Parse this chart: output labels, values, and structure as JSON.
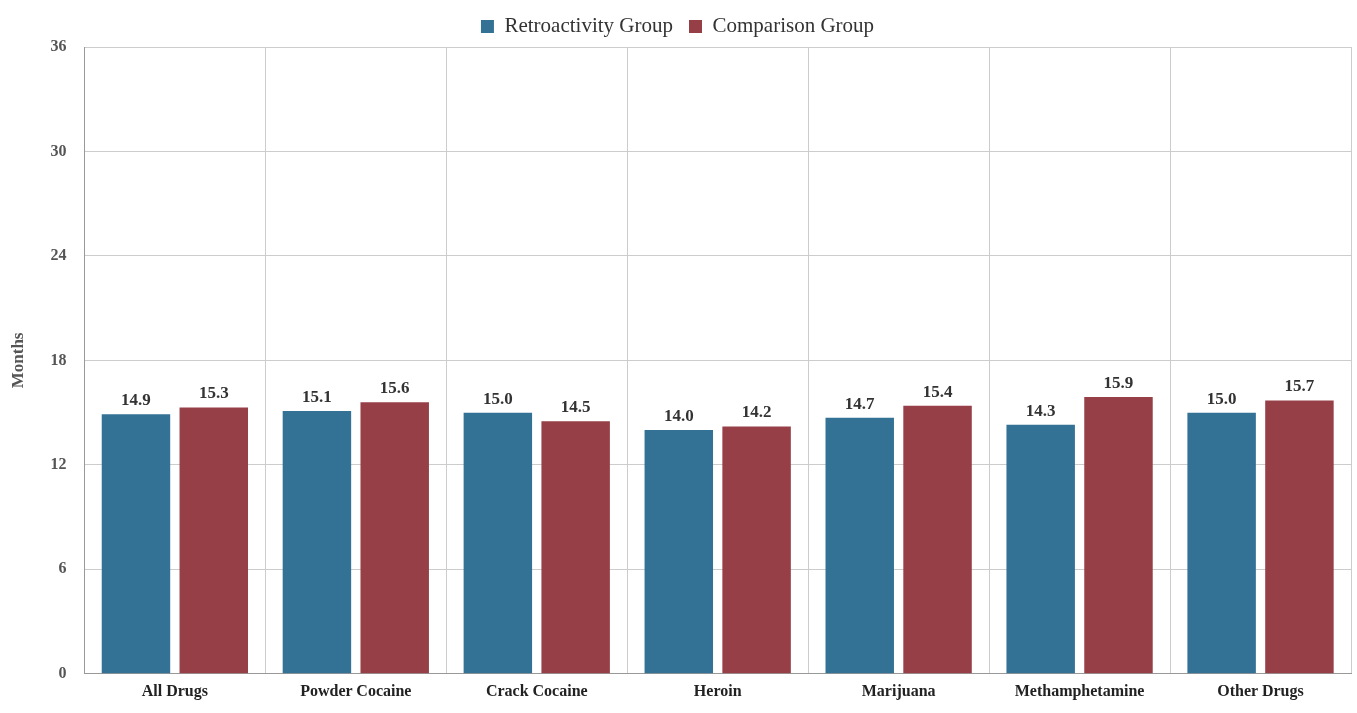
{
  "chart_data": {
    "type": "bar",
    "ylabel": "Months",
    "categories": [
      "All Drugs",
      "Powder Cocaine",
      "Crack Cocaine",
      "Heroin",
      "Marijuana",
      "Methamphetamine",
      "Other Drugs"
    ],
    "series": [
      {
        "name": "Retroactivity Group",
        "color": "#337294",
        "values": [
          14.9,
          15.1,
          15.0,
          14.0,
          14.7,
          14.3,
          15.0
        ],
        "value_labels": [
          "14.9",
          "15.1",
          "15.0",
          "14.0",
          "14.7",
          "14.3",
          "15.0"
        ]
      },
      {
        "name": "Comparison Group",
        "color": "#963f47",
        "values": [
          15.3,
          15.6,
          14.5,
          14.2,
          15.4,
          15.9,
          15.7
        ],
        "value_labels": [
          "15.3",
          "15.6",
          "14.5",
          "14.2",
          "15.4",
          "15.9",
          "15.7"
        ]
      }
    ],
    "ylim": [
      0,
      36
    ],
    "yticks": [
      0,
      6,
      12,
      18,
      24,
      30,
      36
    ],
    "grid": true,
    "legend": "top"
  }
}
